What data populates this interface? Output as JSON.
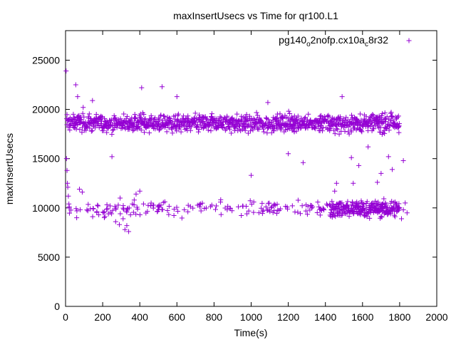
{
  "chart_data": {
    "type": "scatter",
    "title": "maxInsertUsecs vs Time for qr100.L1",
    "xlabel": "Time(s)",
    "ylabel": "maxInsertUsecs",
    "xlim": [
      0,
      2000
    ],
    "ylim": [
      0,
      28000
    ],
    "x_ticks": [
      0,
      200,
      400,
      600,
      800,
      1000,
      1200,
      1400,
      1600,
      1800,
      2000
    ],
    "y_ticks": [
      0,
      5000,
      10000,
      15000,
      20000,
      25000
    ],
    "x_tick_labels": [
      "0",
      "200",
      "400",
      "600",
      "800",
      "1000",
      "1200",
      "1400",
      "1600",
      "1800",
      "2000"
    ],
    "y_tick_labels": [
      "0",
      "5000",
      "10000",
      "15000",
      "20000",
      "25000"
    ],
    "grid": false,
    "legend_position": "top-right",
    "series": [
      {
        "name": "pg140_o2nofp.cx10a_c8r32",
        "legend_parts": {
          "main1": "pg140",
          "sub1": "o",
          "main2": "2nofp.cx10a",
          "sub2": "c",
          "main3": "8r32"
        },
        "color": "#9400d3",
        "marker": "plus",
        "upper_band": {
          "x_range": [
            5,
            1800
          ],
          "center": 18600,
          "spread": 1500
        },
        "lower_band": {
          "x_range": [
            0,
            1800
          ],
          "center": 9900,
          "spread": 1300
        },
        "points": [
          [
            3,
            23900
          ],
          [
            5,
            15000
          ],
          [
            8,
            13800
          ],
          [
            10,
            12500
          ],
          [
            12,
            12100
          ],
          [
            15,
            11200
          ],
          [
            18,
            10400
          ],
          [
            20,
            10100
          ],
          [
            55,
            22500
          ],
          [
            65,
            21300
          ],
          [
            95,
            20200
          ],
          [
            145,
            20900
          ],
          [
            250,
            15200
          ],
          [
            410,
            22200
          ],
          [
            520,
            22300
          ],
          [
            600,
            21300
          ],
          [
            1090,
            20700
          ],
          [
            1200,
            15500
          ],
          [
            1280,
            14600
          ],
          [
            1490,
            21300
          ],
          [
            1540,
            15100
          ],
          [
            1580,
            14300
          ],
          [
            1630,
            16200
          ],
          [
            1680,
            12600
          ],
          [
            1700,
            13500
          ],
          [
            1740,
            15200
          ],
          [
            1760,
            13900
          ],
          [
            1820,
            14800
          ],
          [
            1000,
            13300
          ],
          [
            1450,
            11700
          ],
          [
            1460,
            12500
          ],
          [
            1550,
            12500
          ],
          [
            240,
            10200
          ],
          [
            270,
            8600
          ],
          [
            290,
            8300
          ],
          [
            310,
            8900
          ],
          [
            320,
            7800
          ],
          [
            330,
            8200
          ],
          [
            340,
            7600
          ],
          [
            350,
            9300
          ],
          [
            360,
            10400
          ],
          [
            370,
            10800
          ],
          [
            380,
            11400
          ],
          [
            400,
            11700
          ],
          [
            420,
            10400
          ],
          [
            60,
            9000
          ],
          [
            75,
            11900
          ],
          [
            90,
            11600
          ],
          [
            120,
            9700
          ],
          [
            150,
            9900
          ],
          [
            175,
            10200
          ],
          [
            1810,
            8900
          ],
          [
            1820,
            9800
          ],
          [
            1830,
            10500
          ],
          [
            1840,
            9500
          ]
        ]
      }
    ]
  }
}
